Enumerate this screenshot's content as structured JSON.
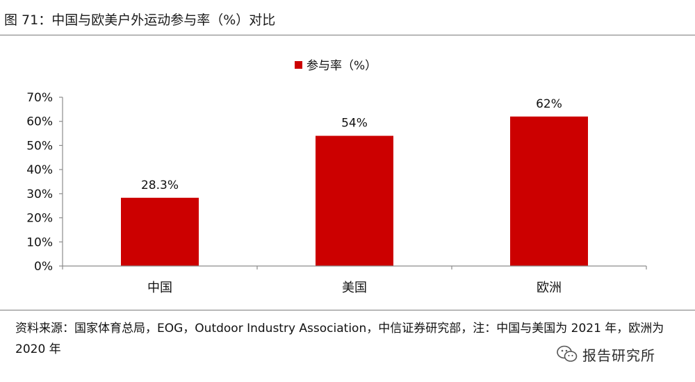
{
  "figure": {
    "title": "图 71：中国与欧美户外运动参与率（%）对比",
    "source": "资料来源：国家体育总局，EOG，Outdoor Industry Association，中信证券研究部，注：中国与美国为 2021 年，欧洲为 2020 年",
    "watermark": "报告研究所"
  },
  "chart_data": {
    "type": "bar",
    "categories": [
      "中国",
      "美国",
      "欧洲"
    ],
    "series": [
      {
        "name": "参与率（%）",
        "values": [
          28.3,
          54,
          62
        ],
        "labels": [
          "28.3%",
          "54%",
          "62%"
        ]
      }
    ],
    "ylim": [
      0,
      70
    ],
    "yticks": [
      0,
      10,
      20,
      30,
      40,
      50,
      60,
      70
    ],
    "ytick_labels": [
      "0%",
      "10%",
      "20%",
      "30%",
      "40%",
      "50%",
      "60%",
      "70%"
    ],
    "legend_position": "top-center",
    "grid": false,
    "bar_color": "#cc0000"
  }
}
